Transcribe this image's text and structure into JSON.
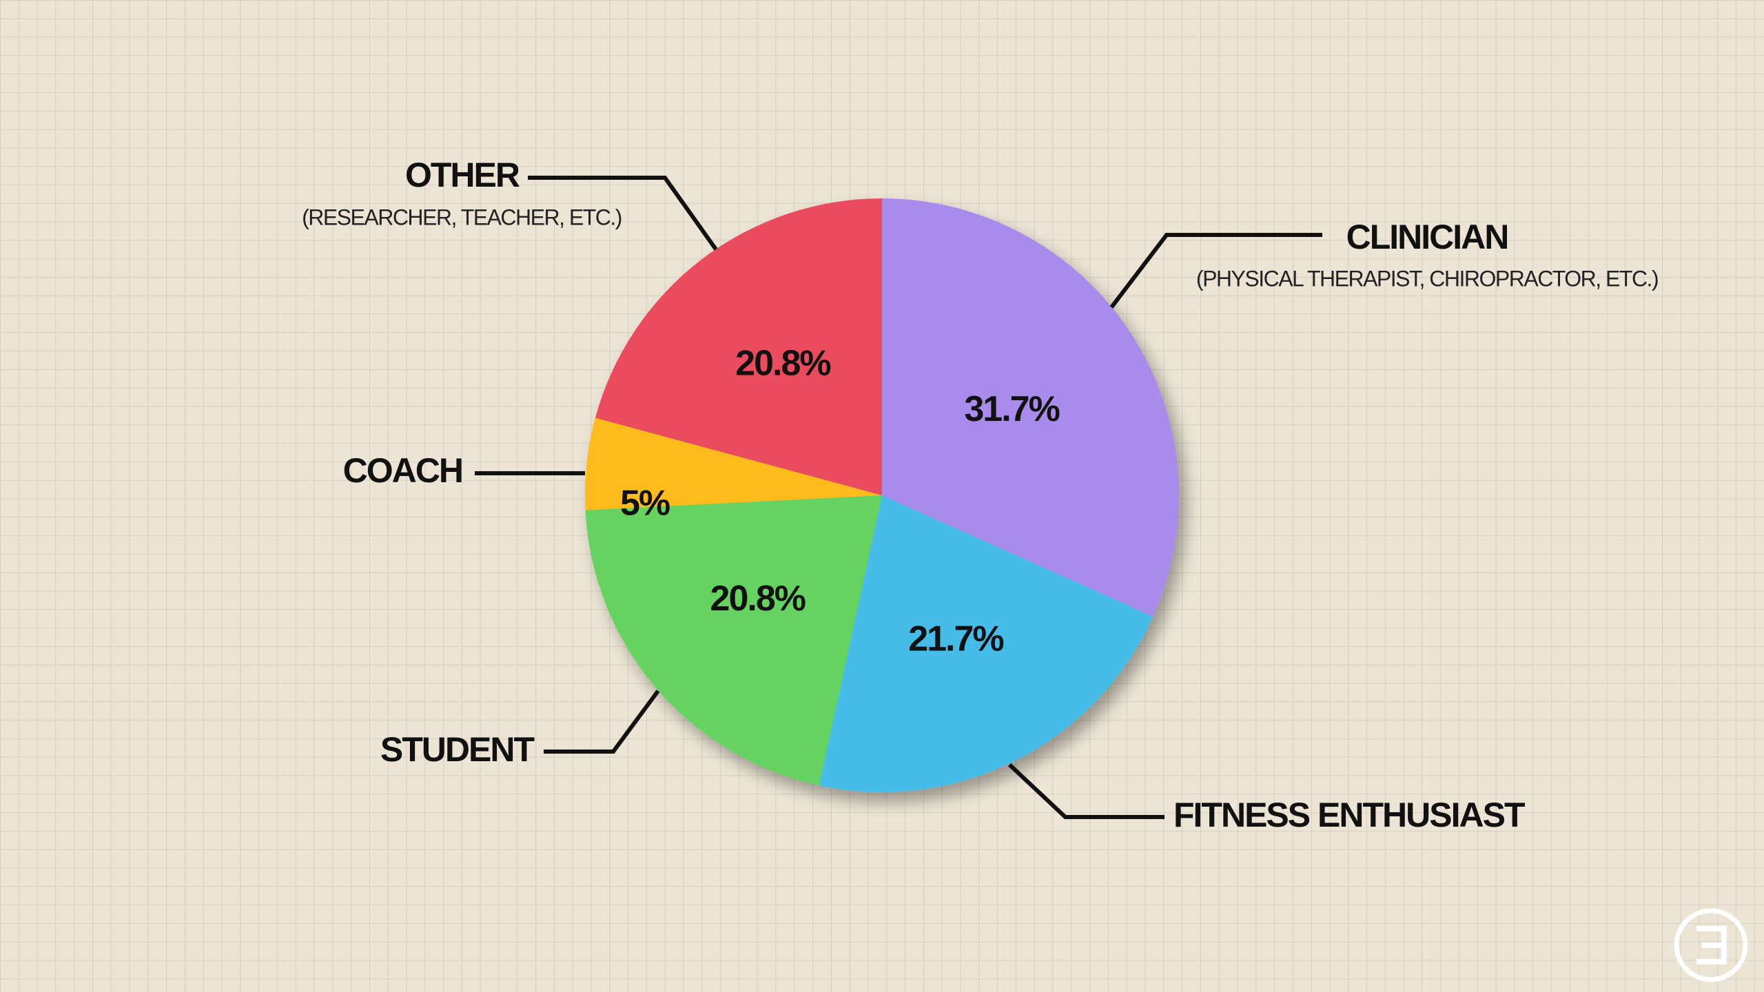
{
  "chart_data": {
    "type": "pie",
    "categories": [
      "CLINICIAN",
      "FITNESS ENTHUSIAST",
      "STUDENT",
      "COACH",
      "OTHER"
    ],
    "sublabels": [
      "(PHYSICAL THERAPIST, CHIROPRACTOR, ETC.)",
      null,
      null,
      null,
      "(RESEARCHER, TEACHER, ETC.)"
    ],
    "values": [
      31.7,
      21.7,
      20.8,
      5,
      20.8
    ],
    "value_labels": [
      "31.7%",
      "21.7%",
      "20.8%",
      "5%",
      "20.8%"
    ],
    "colors": [
      "#a88bea",
      "#45bde8",
      "#66d360",
      "#fdbc1b",
      "#ea4b5d"
    ]
  }
}
